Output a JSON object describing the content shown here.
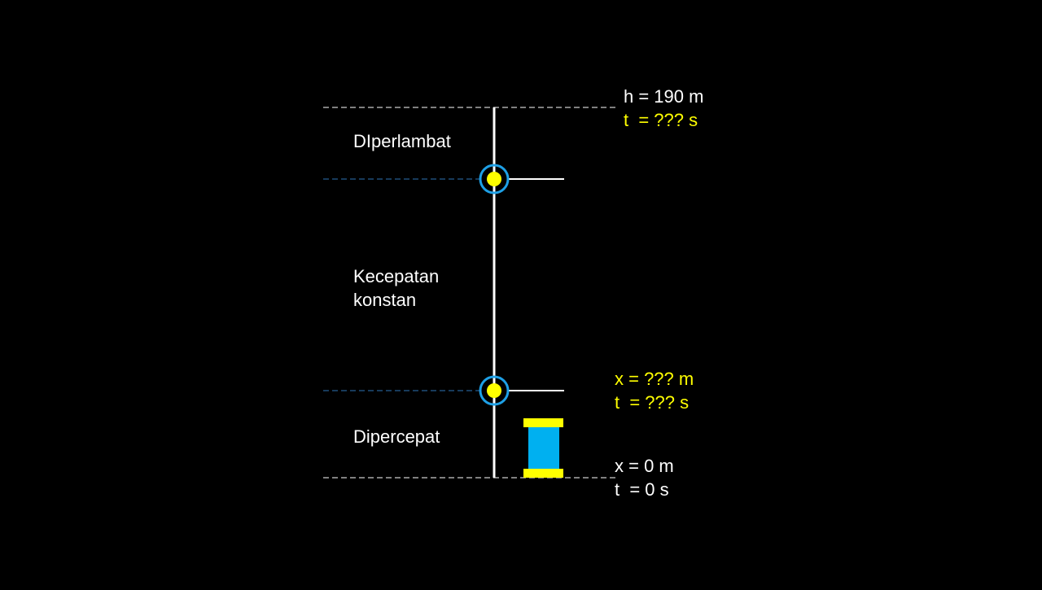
{
  "colors": {
    "background": "#000000",
    "line": "#ffffff",
    "guide_blue": "#2e75b6",
    "ring": "#1ea0e6",
    "marker": "#ffff00",
    "block": "#00b0f0",
    "highlight_text": "#ffff00",
    "text": "#ffffff"
  },
  "phases": {
    "top": "DIperlambat",
    "middle_line1": "Kecepatan",
    "middle_line2": "konstan",
    "bottom": "Dipercepat"
  },
  "top_point": {
    "height": "h = 190 m",
    "time": "t  = ??? s"
  },
  "mid_point": {
    "position": "x = ??? m",
    "time": "t  = ??? s"
  },
  "start_point": {
    "position": "x = 0 m",
    "time": "t  = 0 s"
  },
  "icons": {
    "upper_marker": "circle-marker",
    "lower_marker": "circle-marker",
    "elevator": "elevator-block"
  }
}
